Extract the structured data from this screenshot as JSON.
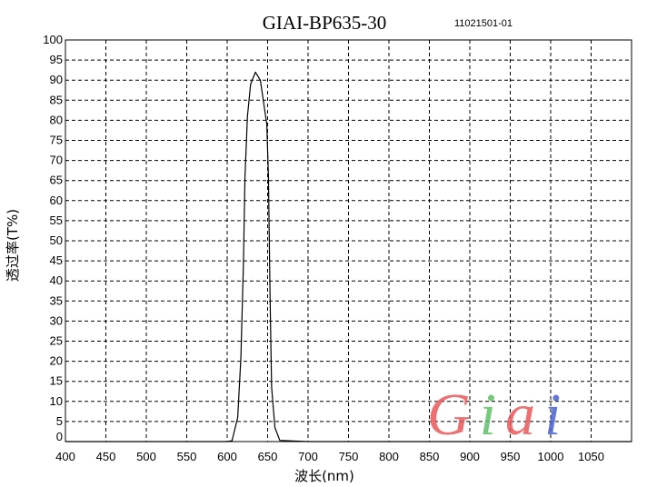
{
  "chart_data": {
    "type": "line",
    "title": "GIAI-BP635-30",
    "subtitle": "11021501-01",
    "xlabel": "波长(nm)",
    "ylabel": "透过率(T%)",
    "xlim": [
      400,
      1100
    ],
    "ylim": [
      0,
      100
    ],
    "xticks": [
      400,
      450,
      500,
      550,
      600,
      650,
      700,
      750,
      800,
      850,
      900,
      950,
      1000,
      1050
    ],
    "yticks": [
      0,
      5,
      10,
      15,
      20,
      25,
      30,
      35,
      40,
      45,
      50,
      55,
      60,
      65,
      70,
      75,
      80,
      85,
      90,
      95,
      100
    ],
    "grid": true,
    "series": [
      {
        "color": "#000000",
        "x": [
          400,
          600,
          606,
          613,
          617,
          620,
          622,
          625,
          629,
          635,
          641,
          649,
          651,
          653,
          655,
          659,
          665,
          700,
          1100
        ],
        "y": [
          0,
          0,
          0.2,
          6,
          21,
          43.5,
          66,
          81,
          89,
          92,
          90,
          79,
          66,
          36,
          13.5,
          3.5,
          0.3,
          0,
          0
        ]
      }
    ]
  },
  "logo": {
    "text": "Giai",
    "colors": [
      "#e8585a",
      "#5fbf6a",
      "#e8585a",
      "#4a5fd0"
    ]
  }
}
